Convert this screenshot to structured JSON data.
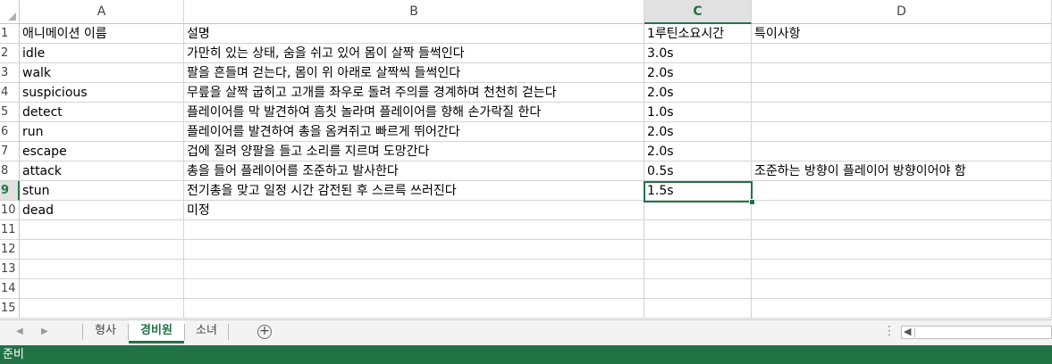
{
  "columns": [
    "A",
    "B",
    "C",
    "D"
  ],
  "selected_column": "C",
  "selected_row": "9",
  "rows": [
    {
      "num": "1",
      "a": "애니메이션 이름",
      "b": "설명",
      "c": "1루틴소요시간",
      "d": "특이사항"
    },
    {
      "num": "2",
      "a": "idle",
      "b": "가만히 있는 상태, 숨을 쉬고 있어 몸이 살짝 들썩인다",
      "c": "3.0s",
      "d": ""
    },
    {
      "num": "3",
      "a": "walk",
      "b": "팔을 흔들며 걷는다, 몸이 위 아래로 살짝씩 들썩인다",
      "c": "2.0s",
      "d": ""
    },
    {
      "num": "4",
      "a": "suspicious",
      "b": "무릎을 살짝 굽히고 고개를 좌우로 돌려 주의를 경계하며 천천히 걷는다",
      "c": "2.0s",
      "d": ""
    },
    {
      "num": "5",
      "a": "detect",
      "b": "플레이어를 막 발견하여 흠칫 놀라며 플레이어를 향해 손가락질 한다",
      "c": "1.0s",
      "d": ""
    },
    {
      "num": "6",
      "a": "run",
      "b": "플레이어를 발견하여 총을 옴켜쥐고 빠르게 뛰어간다",
      "c": "2.0s",
      "d": ""
    },
    {
      "num": "7",
      "a": "escape",
      "b": "겁에 질려 양팔을 들고 소리를 지르며 도망간다",
      "c": "2.0s",
      "d": ""
    },
    {
      "num": "8",
      "a": "attack",
      "b": "총을 들어 플레이어를 조준하고 발사한다",
      "c": "0.5s",
      "d": "조준하는 방향이 플레이어 방향이어야 함"
    },
    {
      "num": "9",
      "a": "stun",
      "b": "전기총을 맞고 일정 시간 감전된 후 스르륵 쓰러진다",
      "c": "1.5s",
      "d": ""
    },
    {
      "num": "10",
      "a": "dead",
      "b": "미정",
      "c": "",
      "d": ""
    },
    {
      "num": "11",
      "a": "",
      "b": "",
      "c": "",
      "d": ""
    },
    {
      "num": "12",
      "a": "",
      "b": "",
      "c": "",
      "d": ""
    },
    {
      "num": "13",
      "a": "",
      "b": "",
      "c": "",
      "d": ""
    },
    {
      "num": "14",
      "a": "",
      "b": "",
      "c": "",
      "d": ""
    },
    {
      "num": "15",
      "a": "",
      "b": "",
      "c": "",
      "d": ""
    }
  ],
  "sheet_tabs": [
    "형사",
    "경비원",
    "소녀"
  ],
  "active_tab": "경비원",
  "status_text": "준비",
  "colors": {
    "accent": "#217346",
    "gridline": "#d4d4d4",
    "header_bg": "#ffffff"
  },
  "icons": {
    "add_sheet": "plus-circle-icon",
    "nav_prev": "triangle-left-icon",
    "nav_next": "triangle-right-icon"
  }
}
